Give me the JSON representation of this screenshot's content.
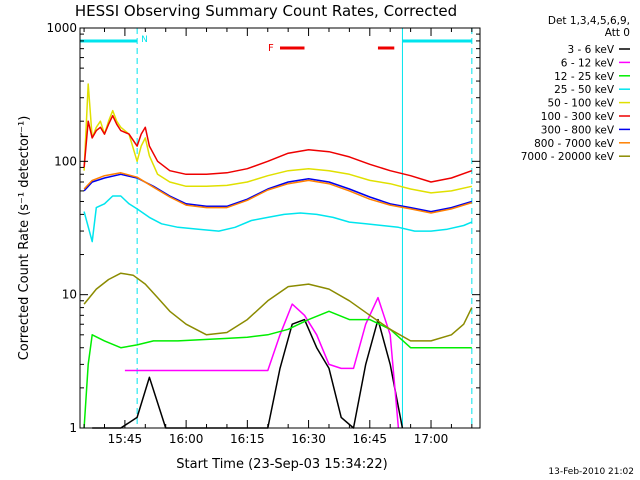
{
  "chart_data": {
    "type": "line",
    "title": "HESSI Observing Summary Count Rates, Corrected",
    "xlabel": "Start Time (23-Sep-03 15:34:22)",
    "ylabel": "Corrected Count Rate (s⁻¹ detector⁻¹)",
    "y_scale": "log",
    "ylim": [
      1,
      1000
    ],
    "y_ticks": [
      {
        "value": 1,
        "label": "1"
      },
      {
        "value": 10,
        "label": "10"
      },
      {
        "value": 100,
        "label": "100"
      },
      {
        "value": 1000,
        "label": "1000"
      }
    ],
    "xlim": [
      "15:34",
      "17:12"
    ],
    "x_ticks": [
      "15:45",
      "16:00",
      "16:15",
      "16:30",
      "16:45",
      "17:00"
    ],
    "x_minor_ticks": [
      "15:35",
      "15:40",
      "15:50",
      "15:55",
      "16:05",
      "16:10",
      "16:20",
      "16:25",
      "16:35",
      "16:40",
      "16:50",
      "16:55",
      "17:05",
      "17:10"
    ],
    "legend_header": [
      "Det 1,3,4,5,6,9,",
      "Att 0"
    ],
    "legend_placement": "right",
    "footer_date": "13-Feb-2010 21:02",
    "night_markers": [
      {
        "label": "N",
        "start": "15:34",
        "end": "15:48",
        "color": "#00e5ee"
      },
      {
        "label": "",
        "start": "16:53",
        "end": "17:10",
        "color": "#00e5ee"
      }
    ],
    "saa_markers": [
      {
        "label": "F",
        "start": "16:23",
        "end": "16:29",
        "color": "#ee0000"
      },
      {
        "label": "",
        "start": "16:47",
        "end": "16:51",
        "color": "#ee0000"
      }
    ],
    "series": [
      {
        "name": "3 - 6 keV",
        "color": "#000000",
        "points": [
          [
            "15:37",
            1
          ],
          [
            "15:44",
            1
          ],
          [
            "15:48",
            1.2
          ],
          [
            "15:51",
            2.4
          ],
          [
            "15:55",
            1
          ],
          [
            "16:20",
            1
          ],
          [
            "16:23",
            2.8
          ],
          [
            "16:26",
            6
          ],
          [
            "16:29",
            6.5
          ],
          [
            "16:32",
            4
          ],
          [
            "16:35",
            2.8
          ],
          [
            "16:38",
            1.2
          ],
          [
            "16:41",
            1
          ],
          [
            "16:44",
            3
          ],
          [
            "16:47",
            6.5
          ],
          [
            "16:50",
            3
          ],
          [
            "16:53",
            1
          ]
        ]
      },
      {
        "name": "6 - 12 keV",
        "color": "#ff00ff",
        "points": [
          [
            "15:45",
            2.7
          ],
          [
            "16:20",
            2.7
          ],
          [
            "16:23",
            5
          ],
          [
            "16:26",
            8.5
          ],
          [
            "16:29",
            7
          ],
          [
            "16:32",
            5
          ],
          [
            "16:35",
            3
          ],
          [
            "16:38",
            2.8
          ],
          [
            "16:41",
            2.8
          ],
          [
            "16:44",
            6
          ],
          [
            "16:47",
            9.5
          ],
          [
            "16:50",
            5
          ],
          [
            "16:52",
            1
          ]
        ]
      },
      {
        "name": "12 - 25 keV",
        "color": "#00ee00",
        "points": [
          [
            "15:35",
            1
          ],
          [
            "15:36",
            3
          ],
          [
            "15:37",
            5
          ],
          [
            "15:40",
            4.5
          ],
          [
            "15:44",
            4
          ],
          [
            "15:48",
            4.2
          ],
          [
            "15:52",
            4.5
          ],
          [
            "15:58",
            4.5
          ],
          [
            "16:04",
            4.6
          ],
          [
            "16:10",
            4.7
          ],
          [
            "16:15",
            4.8
          ],
          [
            "16:20",
            5
          ],
          [
            "16:25",
            5.5
          ],
          [
            "16:30",
            6.5
          ],
          [
            "16:35",
            7.5
          ],
          [
            "16:40",
            6.5
          ],
          [
            "16:45",
            6.5
          ],
          [
            "16:50",
            5.5
          ],
          [
            "16:55",
            4
          ],
          [
            "17:00",
            4
          ],
          [
            "17:05",
            4
          ],
          [
            "17:10",
            4
          ]
        ]
      },
      {
        "name": "25 - 50 keV",
        "color": "#00e5ee",
        "points": [
          [
            "15:35",
            42
          ],
          [
            "15:37",
            25
          ],
          [
            "15:38",
            45
          ],
          [
            "15:40",
            48
          ],
          [
            "15:42",
            55
          ],
          [
            "15:44",
            55
          ],
          [
            "15:46",
            48
          ],
          [
            "15:48",
            44
          ],
          [
            "15:51",
            38
          ],
          [
            "15:54",
            34
          ],
          [
            "15:58",
            32
          ],
          [
            "16:03",
            31
          ],
          [
            "16:08",
            30
          ],
          [
            "16:12",
            32
          ],
          [
            "16:16",
            36
          ],
          [
            "16:20",
            38
          ],
          [
            "16:24",
            40
          ],
          [
            "16:28",
            41
          ],
          [
            "16:32",
            40
          ],
          [
            "16:36",
            38
          ],
          [
            "16:40",
            35
          ],
          [
            "16:44",
            34
          ],
          [
            "16:48",
            33
          ],
          [
            "16:52",
            32
          ],
          [
            "16:56",
            30
          ],
          [
            "17:00",
            30
          ],
          [
            "17:04",
            31
          ],
          [
            "17:08",
            33
          ],
          [
            "17:10",
            35
          ]
        ]
      },
      {
        "name": "50 - 100 keV",
        "color": "#e0e000",
        "points": [
          [
            "15:35",
            85
          ],
          [
            "15:36",
            380
          ],
          [
            "15:37",
            150
          ],
          [
            "15:38",
            180
          ],
          [
            "15:39",
            200
          ],
          [
            "15:40",
            160
          ],
          [
            "15:41",
            200
          ],
          [
            "15:42",
            240
          ],
          [
            "15:43",
            200
          ],
          [
            "15:44",
            180
          ],
          [
            "15:46",
            160
          ],
          [
            "15:48",
            100
          ],
          [
            "15:49",
            130
          ],
          [
            "15:50",
            150
          ],
          [
            "15:51",
            110
          ],
          [
            "15:53",
            80
          ],
          [
            "15:56",
            70
          ],
          [
            "16:00",
            65
          ],
          [
            "16:05",
            65
          ],
          [
            "16:10",
            66
          ],
          [
            "16:15",
            70
          ],
          [
            "16:20",
            78
          ],
          [
            "16:25",
            85
          ],
          [
            "16:30",
            88
          ],
          [
            "16:35",
            85
          ],
          [
            "16:40",
            80
          ],
          [
            "16:45",
            72
          ],
          [
            "16:50",
            68
          ],
          [
            "16:55",
            62
          ],
          [
            "17:00",
            58
          ],
          [
            "17:05",
            60
          ],
          [
            "17:10",
            65
          ]
        ]
      },
      {
        "name": "100 - 300 keV",
        "color": "#ee0000",
        "points": [
          [
            "15:35",
            90
          ],
          [
            "15:36",
            200
          ],
          [
            "15:37",
            150
          ],
          [
            "15:38",
            170
          ],
          [
            "15:39",
            180
          ],
          [
            "15:40",
            160
          ],
          [
            "15:41",
            190
          ],
          [
            "15:42",
            220
          ],
          [
            "15:43",
            190
          ],
          [
            "15:44",
            170
          ],
          [
            "15:46",
            160
          ],
          [
            "15:48",
            130
          ],
          [
            "15:49",
            160
          ],
          [
            "15:50",
            180
          ],
          [
            "15:51",
            130
          ],
          [
            "15:53",
            100
          ],
          [
            "15:56",
            85
          ],
          [
            "16:00",
            80
          ],
          [
            "16:05",
            80
          ],
          [
            "16:10",
            82
          ],
          [
            "16:15",
            88
          ],
          [
            "16:20",
            100
          ],
          [
            "16:25",
            115
          ],
          [
            "16:30",
            122
          ],
          [
            "16:35",
            118
          ],
          [
            "16:40",
            108
          ],
          [
            "16:45",
            95
          ],
          [
            "16:50",
            85
          ],
          [
            "16:55",
            78
          ],
          [
            "17:00",
            70
          ],
          [
            "17:05",
            75
          ],
          [
            "17:10",
            85
          ]
        ]
      },
      {
        "name": "300 - 800 keV",
        "color": "#0000ee",
        "points": [
          [
            "15:35",
            60
          ],
          [
            "15:37",
            70
          ],
          [
            "15:40",
            75
          ],
          [
            "15:44",
            80
          ],
          [
            "15:48",
            75
          ],
          [
            "15:52",
            65
          ],
          [
            "15:56",
            55
          ],
          [
            "16:00",
            48
          ],
          [
            "16:05",
            46
          ],
          [
            "16:10",
            46
          ],
          [
            "16:15",
            52
          ],
          [
            "16:20",
            62
          ],
          [
            "16:25",
            70
          ],
          [
            "16:30",
            74
          ],
          [
            "16:35",
            70
          ],
          [
            "16:40",
            62
          ],
          [
            "16:45",
            54
          ],
          [
            "16:50",
            48
          ],
          [
            "16:55",
            45
          ],
          [
            "17:00",
            42
          ],
          [
            "17:05",
            45
          ],
          [
            "17:10",
            50
          ]
        ]
      },
      {
        "name": "800 - 7000 keV",
        "color": "#ff8000",
        "points": [
          [
            "15:35",
            62
          ],
          [
            "15:37",
            72
          ],
          [
            "15:40",
            78
          ],
          [
            "15:44",
            82
          ],
          [
            "15:48",
            76
          ],
          [
            "15:52",
            64
          ],
          [
            "15:56",
            54
          ],
          [
            "16:00",
            47
          ],
          [
            "16:05",
            45
          ],
          [
            "16:10",
            45
          ],
          [
            "16:15",
            51
          ],
          [
            "16:20",
            61
          ],
          [
            "16:25",
            68
          ],
          [
            "16:30",
            72
          ],
          [
            "16:35",
            68
          ],
          [
            "16:40",
            60
          ],
          [
            "16:45",
            52
          ],
          [
            "16:50",
            47
          ],
          [
            "16:55",
            44
          ],
          [
            "17:00",
            41
          ],
          [
            "17:05",
            44
          ],
          [
            "17:10",
            49
          ]
        ]
      },
      {
        "name": "7000 - 20000 keV",
        "color": "#8b8b00",
        "points": [
          [
            "15:35",
            8.5
          ],
          [
            "15:38",
            11
          ],
          [
            "15:41",
            13
          ],
          [
            "15:44",
            14.5
          ],
          [
            "15:47",
            14
          ],
          [
            "15:50",
            12
          ],
          [
            "15:53",
            9.5
          ],
          [
            "15:56",
            7.5
          ],
          [
            "16:00",
            6
          ],
          [
            "16:05",
            5
          ],
          [
            "16:10",
            5.2
          ],
          [
            "16:15",
            6.5
          ],
          [
            "16:20",
            9
          ],
          [
            "16:25",
            11.5
          ],
          [
            "16:30",
            12
          ],
          [
            "16:35",
            11
          ],
          [
            "16:40",
            9
          ],
          [
            "16:45",
            7
          ],
          [
            "16:50",
            5.5
          ],
          [
            "16:55",
            4.5
          ],
          [
            "17:00",
            4.5
          ],
          [
            "17:05",
            5
          ],
          [
            "17:08",
            6
          ],
          [
            "17:10",
            8
          ]
        ]
      }
    ]
  }
}
